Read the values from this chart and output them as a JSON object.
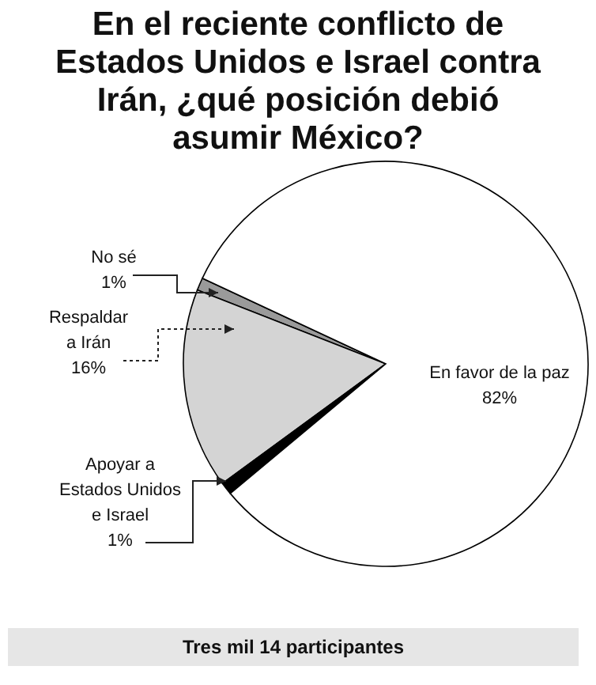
{
  "chart_data": {
    "type": "pie",
    "title": "En el reciente conflicto de Estados Unidos e Israel contra Irán, ¿qué posición debió asumir México?",
    "categories": [
      "No sé",
      "Respaldar a Irán",
      "Apoyar a Estados Unidos e Israel",
      "En favor de la paz"
    ],
    "values": [
      1,
      16,
      1,
      82
    ],
    "colors": [
      "#9a9a9a",
      "#d4d4d4",
      "#000000",
      "#ffffff"
    ],
    "value_labels": [
      "1%",
      "16%",
      "1%",
      "82%"
    ],
    "annotations": [
      "Tres mil 14 participantes"
    ]
  }
}
